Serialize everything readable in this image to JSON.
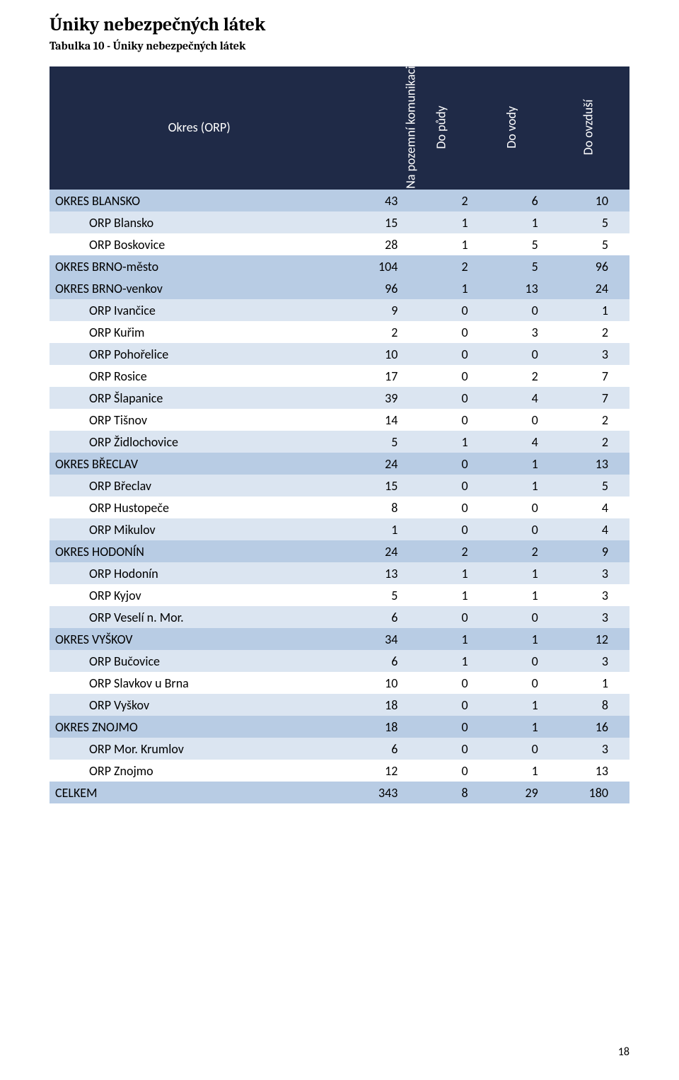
{
  "title": "Úniky nebezpečných látek",
  "subtitle": "Tabulka 10 - Úniky nebezpečných látek",
  "page_number": "18",
  "table": {
    "header_name": "Okres (ORP)",
    "columns": [
      "Na pozemní\nkomunikaci",
      "Do půdy",
      "Do vody",
      "Do ovzduší"
    ],
    "header_bg": "#1f2a47",
    "header_fg": "#ffffff",
    "row_colors": {
      "okres": "#b8cce4",
      "orp_even": "#dbe5f1",
      "orp_odd": "#ffffff",
      "total": "#b8cce4"
    },
    "rows": [
      {
        "level": "okres",
        "name": "OKRES BLANSKO",
        "values": [
          43,
          2,
          6,
          10
        ]
      },
      {
        "level": "orp",
        "name": "ORP Blansko",
        "values": [
          15,
          1,
          1,
          5
        ]
      },
      {
        "level": "orp",
        "name": "ORP Boskovice",
        "values": [
          28,
          1,
          5,
          5
        ]
      },
      {
        "level": "okres",
        "name": "OKRES BRNO-město",
        "values": [
          104,
          2,
          5,
          96
        ]
      },
      {
        "level": "okres",
        "name": "OKRES BRNO-venkov",
        "values": [
          96,
          1,
          13,
          24
        ]
      },
      {
        "level": "orp",
        "name": "ORP Ivančice",
        "values": [
          9,
          0,
          0,
          1
        ]
      },
      {
        "level": "orp",
        "name": "ORP Kuřim",
        "values": [
          2,
          0,
          3,
          2
        ]
      },
      {
        "level": "orp",
        "name": "ORP Pohořelice",
        "values": [
          10,
          0,
          0,
          3
        ]
      },
      {
        "level": "orp",
        "name": "ORP Rosice",
        "values": [
          17,
          0,
          2,
          7
        ]
      },
      {
        "level": "orp",
        "name": "ORP Šlapanice",
        "values": [
          39,
          0,
          4,
          7
        ]
      },
      {
        "level": "orp",
        "name": "ORP Tišnov",
        "values": [
          14,
          0,
          0,
          2
        ]
      },
      {
        "level": "orp",
        "name": "ORP Židlochovice",
        "values": [
          5,
          1,
          4,
          2
        ]
      },
      {
        "level": "okres",
        "name": "OKRES BŘECLAV",
        "values": [
          24,
          0,
          1,
          13
        ]
      },
      {
        "level": "orp",
        "name": "ORP Břeclav",
        "values": [
          15,
          0,
          1,
          5
        ]
      },
      {
        "level": "orp",
        "name": "ORP Hustopeče",
        "values": [
          8,
          0,
          0,
          4
        ]
      },
      {
        "level": "orp",
        "name": "ORP Mikulov",
        "values": [
          1,
          0,
          0,
          4
        ]
      },
      {
        "level": "okres",
        "name": "OKRES HODONÍN",
        "values": [
          24,
          2,
          2,
          9
        ]
      },
      {
        "level": "orp",
        "name": "ORP Hodonín",
        "values": [
          13,
          1,
          1,
          3
        ]
      },
      {
        "level": "orp",
        "name": "ORP Kyjov",
        "values": [
          5,
          1,
          1,
          3
        ]
      },
      {
        "level": "orp",
        "name": "ORP Veselí n. Mor.",
        "values": [
          6,
          0,
          0,
          3
        ]
      },
      {
        "level": "okres",
        "name": "OKRES VYŠKOV",
        "values": [
          34,
          1,
          1,
          12
        ]
      },
      {
        "level": "orp",
        "name": "ORP Bučovice",
        "values": [
          6,
          1,
          0,
          3
        ]
      },
      {
        "level": "orp",
        "name": "ORP Slavkov u Brna",
        "values": [
          10,
          0,
          0,
          1
        ]
      },
      {
        "level": "orp",
        "name": "ORP Vyškov",
        "values": [
          18,
          0,
          1,
          8
        ]
      },
      {
        "level": "okres",
        "name": "OKRES ZNOJMO",
        "values": [
          18,
          0,
          1,
          16
        ]
      },
      {
        "level": "orp",
        "name": "ORP Mor. Krumlov",
        "values": [
          6,
          0,
          0,
          3
        ]
      },
      {
        "level": "orp",
        "name": "ORP Znojmo",
        "values": [
          12,
          0,
          1,
          13
        ]
      },
      {
        "level": "total",
        "name": "CELKEM",
        "values": [
          343,
          8,
          29,
          180
        ]
      }
    ]
  }
}
